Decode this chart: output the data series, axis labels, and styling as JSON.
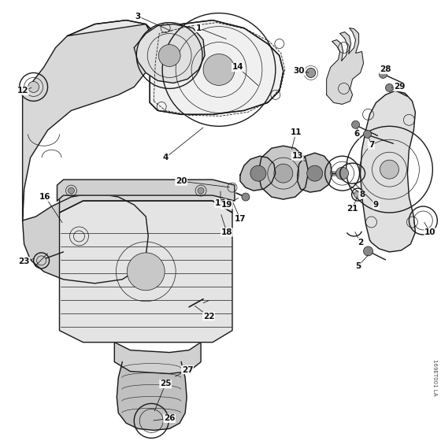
{
  "background_color": "#ffffff",
  "figure_size": [
    5.6,
    5.6
  ],
  "dpi": 100,
  "watermark": "169ET001 LA",
  "label_fontsize": 7.5,
  "line_color": "#1a1a1a",
  "text_color": "#111111",
  "lw_main": 1.0,
  "lw_thin": 0.5,
  "lw_thick": 1.4
}
